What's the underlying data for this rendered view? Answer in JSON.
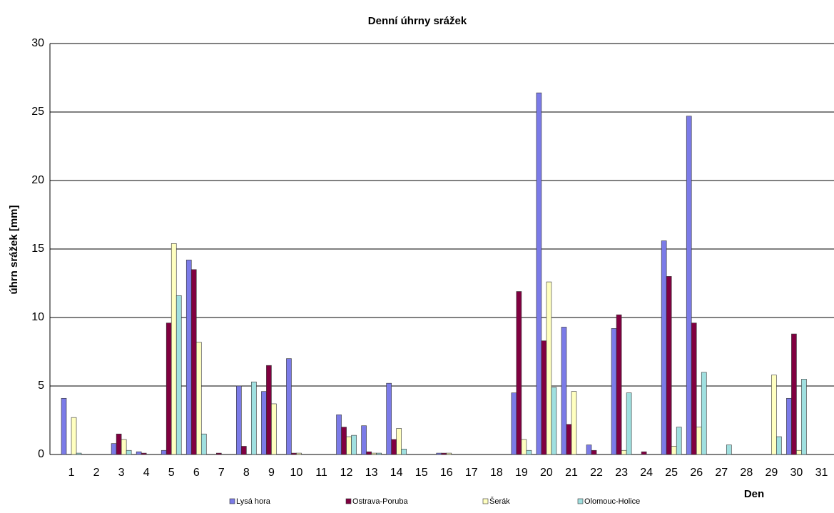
{
  "chart_data": {
    "type": "bar",
    "title": "Denní úhrny srážek",
    "x_label": "Den",
    "y_label": "úhrn srážek [mm]",
    "categories": [
      "1",
      "2",
      "3",
      "4",
      "5",
      "6",
      "7",
      "8",
      "9",
      "10",
      "11",
      "12",
      "13",
      "14",
      "15",
      "16",
      "17",
      "18",
      "19",
      "20",
      "21",
      "22",
      "23",
      "24",
      "25",
      "26",
      "27",
      "28",
      "29",
      "30",
      "31"
    ],
    "series": [
      {
        "name": "Lysá hora",
        "color": "#7b7be8",
        "values": [
          4.1,
          0,
          0.8,
          0.2,
          0.3,
          14.2,
          0,
          5.0,
          4.6,
          7.0,
          0,
          2.9,
          2.1,
          5.2,
          0,
          0.1,
          0,
          0,
          4.5,
          26.4,
          9.3,
          0.7,
          9.2,
          0,
          15.6,
          24.7,
          0,
          0,
          0,
          4.1,
          0
        ]
      },
      {
        "name": "Ostrava-Poruba",
        "color": "#800040",
        "values": [
          0,
          0,
          1.5,
          0.1,
          9.6,
          13.5,
          0.1,
          0.6,
          6.5,
          0.1,
          0,
          2.0,
          0.2,
          1.1,
          0,
          0.1,
          0,
          0,
          11.9,
          8.3,
          2.2,
          0.3,
          10.2,
          0.2,
          13.0,
          9.6,
          0,
          0,
          0,
          8.8,
          0
        ]
      },
      {
        "name": "Šerák",
        "color": "#ffffc0",
        "values": [
          2.7,
          0,
          1.1,
          0,
          15.4,
          8.2,
          0,
          0,
          3.7,
          0.1,
          0,
          1.3,
          0.1,
          1.9,
          0,
          0.1,
          0,
          0,
          1.1,
          12.6,
          4.6,
          0,
          0.3,
          0,
          0.6,
          2.0,
          0,
          0,
          5.8,
          0.3,
          0
        ]
      },
      {
        "name": "Olomouc-Holice",
        "color": "#a0e0e0",
        "values": [
          0.1,
          0,
          0.3,
          0,
          11.6,
          1.5,
          0,
          5.3,
          0,
          0,
          0,
          1.4,
          0.1,
          0.4,
          0,
          0,
          0,
          0,
          0.3,
          4.9,
          0,
          0,
          4.5,
          0,
          2.0,
          6.0,
          0.7,
          0,
          1.3,
          5.5,
          0
        ]
      }
    ],
    "ylim": [
      0,
      30
    ],
    "yticks": [
      0,
      5,
      10,
      15,
      20,
      25,
      30
    ],
    "grid": true
  }
}
